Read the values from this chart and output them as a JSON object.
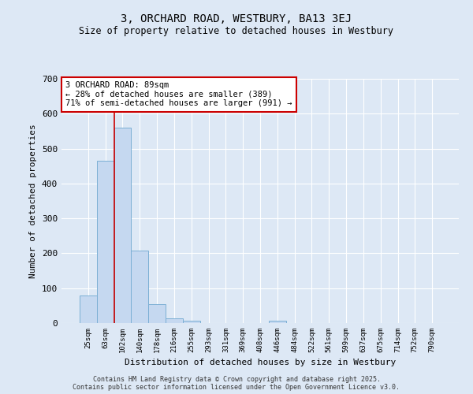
{
  "title1": "3, ORCHARD ROAD, WESTBURY, BA13 3EJ",
  "title2": "Size of property relative to detached houses in Westbury",
  "xlabel": "Distribution of detached houses by size in Westbury",
  "ylabel": "Number of detached properties",
  "bar_color": "#c5d8f0",
  "bar_edge_color": "#7bafd4",
  "background_color": "#dde8f5",
  "grid_color": "#ffffff",
  "categories": [
    "25sqm",
    "63sqm",
    "102sqm",
    "140sqm",
    "178sqm",
    "216sqm",
    "255sqm",
    "293sqm",
    "331sqm",
    "369sqm",
    "408sqm",
    "446sqm",
    "484sqm",
    "522sqm",
    "561sqm",
    "599sqm",
    "637sqm",
    "675sqm",
    "714sqm",
    "752sqm",
    "790sqm"
  ],
  "values": [
    80,
    465,
    560,
    208,
    55,
    13,
    7,
    1,
    0,
    0,
    0,
    7,
    0,
    0,
    0,
    0,
    0,
    0,
    0,
    0,
    0
  ],
  "ylim": [
    0,
    700
  ],
  "yticks": [
    0,
    100,
    200,
    300,
    400,
    500,
    600,
    700
  ],
  "red_line_x": 1.5,
  "annotation_text": "3 ORCHARD ROAD: 89sqm\n← 28% of detached houses are smaller (389)\n71% of semi-detached houses are larger (991) →",
  "red_line_color": "#cc0000",
  "annotation_box_facecolor": "#ffffff",
  "annotation_box_edgecolor": "#cc0000",
  "footer1": "Contains HM Land Registry data © Crown copyright and database right 2025.",
  "footer2": "Contains public sector information licensed under the Open Government Licence v3.0."
}
